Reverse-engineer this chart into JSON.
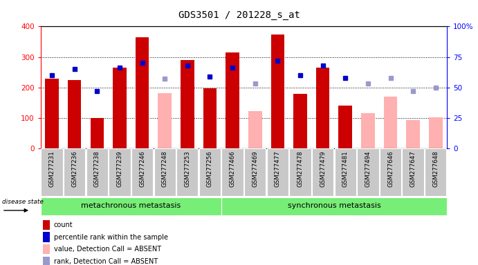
{
  "title": "GDS3501 / 201228_s_at",
  "samples": [
    "GSM277231",
    "GSM277236",
    "GSM277238",
    "GSM277239",
    "GSM277246",
    "GSM277248",
    "GSM277253",
    "GSM277256",
    "GSM277466",
    "GSM277469",
    "GSM277477",
    "GSM277478",
    "GSM277479",
    "GSM277481",
    "GSM277494",
    "GSM277646",
    "GSM277647",
    "GSM277648"
  ],
  "count": [
    228,
    224,
    100,
    265,
    365,
    null,
    290,
    196,
    315,
    null,
    374,
    178,
    265,
    140,
    null,
    null,
    null,
    null
  ],
  "absent_value": [
    null,
    null,
    null,
    null,
    null,
    182,
    null,
    null,
    null,
    122,
    null,
    null,
    null,
    null,
    115,
    170,
    92,
    103
  ],
  "percentile_rank": [
    60,
    65,
    47,
    66,
    70,
    null,
    68,
    59,
    66,
    null,
    72,
    60,
    68,
    58,
    null,
    null,
    null,
    null
  ],
  "absent_rank": [
    null,
    null,
    null,
    null,
    null,
    57,
    null,
    null,
    null,
    53,
    null,
    null,
    null,
    null,
    53,
    58,
    47,
    50
  ],
  "group1_count": 8,
  "group1_label": "metachronous metastasis",
  "group2_label": "synchronous metastasis",
  "disease_state_label": "disease state",
  "ylim_left": [
    0,
    400
  ],
  "ylim_right": [
    0,
    100
  ],
  "bar_color_present": "#cc0000",
  "bar_color_absent": "#ffb0b0",
  "dot_color_present": "#0000cc",
  "dot_color_absent": "#9999cc",
  "group_color": "#77ee77",
  "xtick_bg": "#c8c8c8",
  "legend_items": [
    {
      "label": "count",
      "color": "#cc0000"
    },
    {
      "label": "percentile rank within the sample",
      "color": "#0000cc"
    },
    {
      "label": "value, Detection Call = ABSENT",
      "color": "#ffb0b0"
    },
    {
      "label": "rank, Detection Call = ABSENT",
      "color": "#9999cc"
    }
  ]
}
